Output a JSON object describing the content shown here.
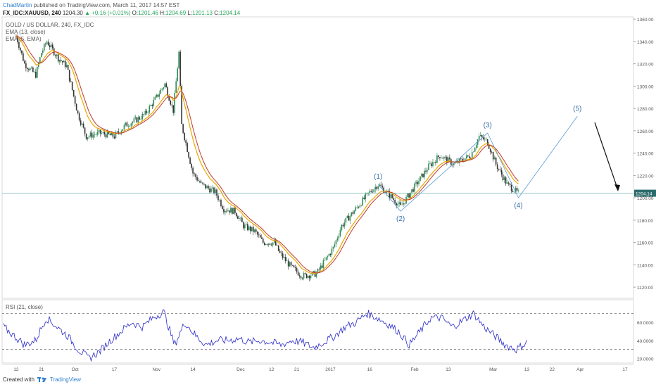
{
  "header": {
    "author": "ChadMartin",
    "published": "published on TradingView.com, March 11, 2017 14:57 EST"
  },
  "quote": {
    "symbol": "FX_IDC:XAUUSD, 240",
    "last": "1204.30",
    "change": "+0.16 (+0.01%)",
    "open_label": "O:",
    "open": "1201.46",
    "high_label": "H:",
    "high": "1204.69",
    "low_label": "L:",
    "low": "1201.13",
    "close_label": "C:",
    "close": "1204.14"
  },
  "legend": {
    "title": "GOLD / US DOLLAR, 240, FX_IDC",
    "ema13": "EMA (13, close)",
    "ema5": "EMA (5, EMA)"
  },
  "rsi_legend": "RSI (21, close)",
  "footer": {
    "created_with": "Created with",
    "brand": "TradingView"
  },
  "colors": {
    "up_candle": "#2e8b57",
    "down_candle": "#333333",
    "ema13": "#e8a800",
    "ema5": "#c0392b",
    "rsi": "#2828c8",
    "wave": "#5b9bd5",
    "price_line": "#5aa5a5"
  },
  "chart_data": [
    {
      "type": "line",
      "title": "GOLD / US DOLLAR, 240, FX_IDC",
      "ylim": [
        1110,
        1362
      ],
      "yticks": [
        "1360.00",
        "1340.00",
        "1320.00",
        "1300.00",
        "1280.00",
        "1260.00",
        "1240.00",
        "1220.00",
        "1200.00",
        "1180.00",
        "1160.00",
        "1140.00",
        "1120.00"
      ],
      "ytick_values": [
        1360,
        1340,
        1320,
        1300,
        1280,
        1260,
        1240,
        1220,
        1200,
        1180,
        1160,
        1140,
        1120
      ],
      "current_price": 1204.14,
      "current_price_label": "1204.14",
      "x_labels": [
        "12",
        "21",
        "Oct",
        "17",
        "Nov",
        "14",
        "Dec",
        "12",
        "21",
        "2017",
        "16",
        "Feb",
        "13",
        "Mar",
        "13",
        "22",
        "Apr",
        "17"
      ],
      "series": [
        {
          "name": "GOLD / US DOLLAR",
          "dates": [
            "2016-09-12",
            "2016-09-15",
            "2016-09-19",
            "2016-09-21",
            "2016-09-23",
            "2016-09-27",
            "2016-09-30",
            "2016-10-04",
            "2016-10-07",
            "2016-10-12",
            "2016-10-17",
            "2016-10-21",
            "2016-10-25",
            "2016-10-28",
            "2016-11-01",
            "2016-11-04",
            "2016-11-07",
            "2016-11-09",
            "2016-11-10",
            "2016-11-14",
            "2016-11-17",
            "2016-11-22",
            "2016-11-25",
            "2016-11-29",
            "2016-12-02",
            "2016-12-06",
            "2016-12-09",
            "2016-12-13",
            "2016-12-15",
            "2016-12-19",
            "2016-12-23",
            "2016-12-28",
            "2017-01-03",
            "2017-01-06",
            "2017-01-11",
            "2017-01-16",
            "2017-01-19",
            "2017-01-24",
            "2017-01-27",
            "2017-02-01",
            "2017-02-06",
            "2017-02-10",
            "2017-02-15",
            "2017-02-21",
            "2017-02-24",
            "2017-02-27",
            "2017-03-02",
            "2017-03-06",
            "2017-03-10"
          ],
          "values": [
            1345,
            1320,
            1310,
            1330,
            1340,
            1325,
            1318,
            1275,
            1255,
            1258,
            1255,
            1265,
            1270,
            1275,
            1290,
            1302,
            1278,
            1330,
            1265,
            1222,
            1212,
            1205,
            1190,
            1188,
            1175,
            1170,
            1160,
            1160,
            1150,
            1138,
            1130,
            1132,
            1155,
            1175,
            1190,
            1205,
            1212,
            1200,
            1192,
            1210,
            1228,
            1238,
            1230,
            1238,
            1255,
            1250,
            1230,
            1212,
            1204
          ]
        },
        {
          "name": "Elliott wave",
          "labels": [
            "(1)",
            "(2)",
            "(3)",
            "(4)",
            "(5)"
          ],
          "points": [
            {
              "date": "2017-01-19",
              "value": 1212
            },
            {
              "date": "2017-01-27",
              "value": 1188
            },
            {
              "date": "2017-02-27",
              "value": 1258
            },
            {
              "date": "2017-03-10",
              "value": 1200
            },
            {
              "date": "2017-03-31",
              "value": 1273
            }
          ]
        }
      ]
    },
    {
      "type": "line",
      "title": "RSI (21, close)",
      "ylim": [
        15,
        85
      ],
      "yticks": [
        "60.0000",
        "40.0000",
        "20.0000"
      ],
      "ytick_values": [
        60,
        40,
        20
      ],
      "levels": [
        70,
        30
      ],
      "series": [
        {
          "name": "RSI (21, close)",
          "values": [
            55,
            45,
            35,
            40,
            65,
            55,
            45,
            30,
            20,
            28,
            40,
            50,
            60,
            55,
            65,
            72,
            35,
            60,
            45,
            35,
            40,
            40,
            42,
            38,
            40,
            38,
            35,
            40,
            38,
            32,
            38,
            45,
            55,
            60,
            70,
            65,
            58,
            50,
            35,
            50,
            65,
            65,
            55,
            62,
            70,
            55,
            45,
            35,
            30,
            38
          ]
        }
      ]
    }
  ]
}
